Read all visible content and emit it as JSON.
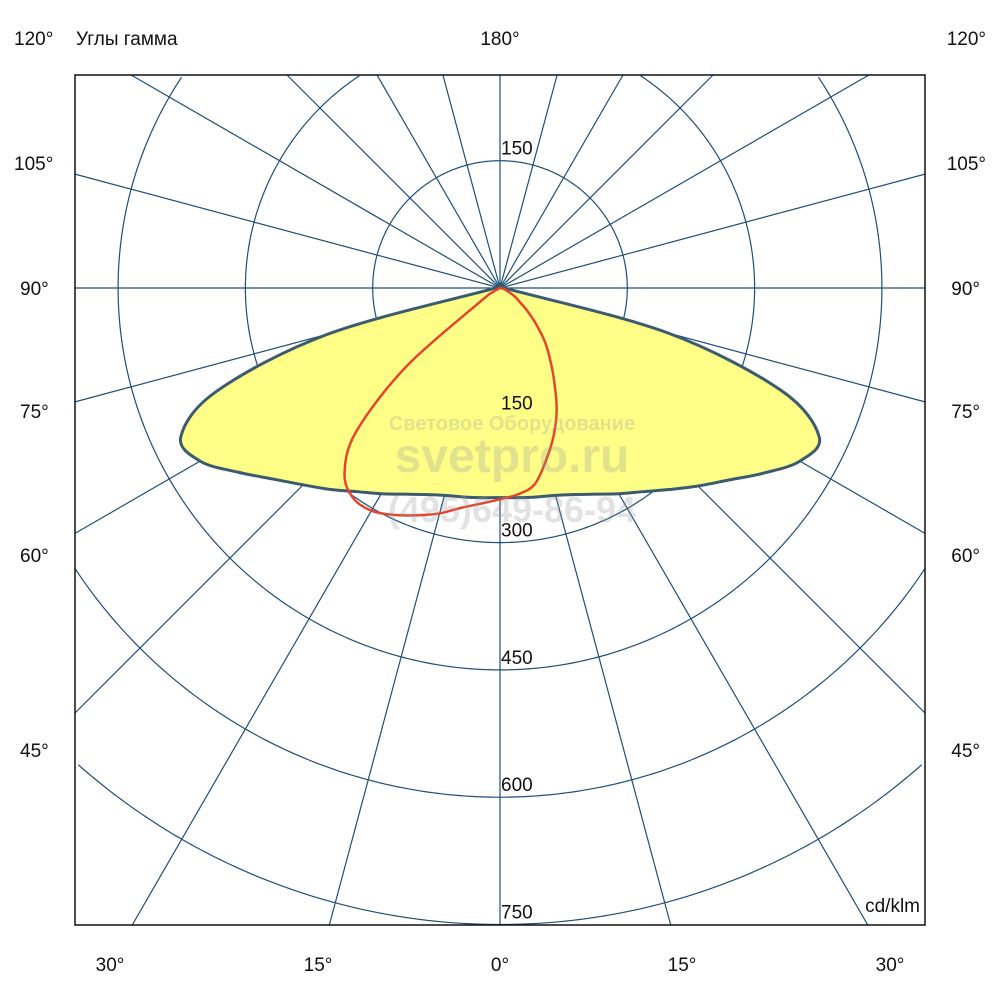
{
  "chart_data": {
    "type": "polar",
    "title": "Углы гамма",
    "unit_label": "cd/klm",
    "top_label": "180°",
    "rmax": 750,
    "radial_ticks": [
      150,
      300,
      450,
      600,
      750
    ],
    "top_radial_tick": "150",
    "ray_step_deg": 15,
    "side_angle_labels": [
      "120°",
      "105°",
      "90°",
      "75°",
      "60°",
      "45°"
    ],
    "bottom_angle_labels": [
      "30°",
      "15°",
      "0°",
      "15°",
      "30°"
    ],
    "grid": true,
    "grid_color": "#1f4e79",
    "series": [
      {
        "fill": "#ffff88",
        "stroke": "#3b5b6e",
        "gamma": [
          -90,
          -85,
          -80,
          -75,
          -70,
          -65,
          -60,
          -55,
          -50,
          -45,
          -40,
          -35,
          -30,
          -25,
          -20,
          -15,
          -10,
          -5,
          0,
          5,
          10,
          15,
          20,
          25,
          30,
          35,
          40,
          45,
          50,
          55,
          60,
          65,
          70,
          75,
          80,
          85,
          90
        ],
        "values": [
          0,
          5,
          15,
          210,
          355,
          415,
          408,
          378,
          350,
          328,
          310,
          293,
          280,
          268,
          259,
          253,
          250,
          248,
          247,
          248,
          250,
          253,
          259,
          268,
          280,
          293,
          310,
          330,
          352,
          380,
          408,
          415,
          352,
          205,
          15,
          5,
          0
        ]
      },
      {
        "fill": "none",
        "stroke": "#e5452c",
        "gamma": [
          -90,
          -60,
          -55,
          -50,
          -45,
          -40,
          -35,
          -30,
          -25,
          -20,
          -15,
          -10,
          -5,
          0,
          5,
          10,
          15,
          20,
          25,
          30,
          35,
          40,
          45,
          50,
          55,
          60,
          70,
          80,
          90
        ],
        "values": [
          0,
          10,
          30,
          145,
          240,
          285,
          302,
          303,
          295,
          285,
          275,
          263,
          255,
          249,
          244,
          235,
          210,
          185,
          158,
          128,
          103,
          82,
          60,
          42,
          28,
          20,
          8,
          3,
          0
        ]
      }
    ]
  },
  "watermark": {
    "line1": "Световое Оборудование",
    "line2": "svetpro.ru",
    "line3": "(495)649-86-94"
  }
}
